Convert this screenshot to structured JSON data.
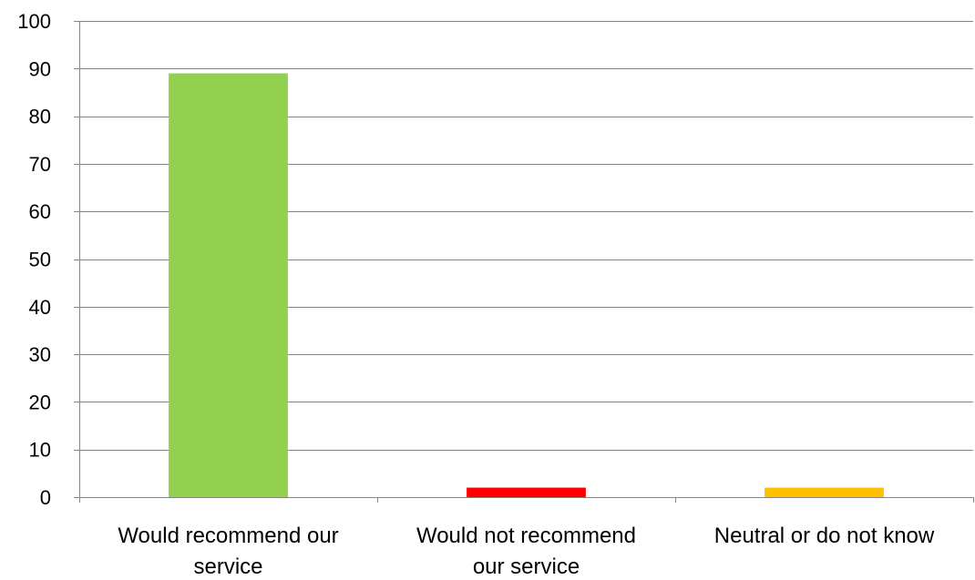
{
  "chart_data": {
    "type": "bar",
    "categories": [
      [
        "Would recommend our",
        "service"
      ],
      [
        "Would not recommend",
        "our service"
      ],
      [
        "Neutral or do not know"
      ]
    ],
    "values": [
      89,
      2,
      2
    ],
    "colors": [
      "#92D050",
      "#FF0000",
      "#FFC000"
    ],
    "ylim": [
      0,
      100
    ],
    "yticks": [
      "0",
      "10",
      "20",
      "30",
      "40",
      "50",
      "60",
      "70",
      "80",
      "90",
      "100"
    ],
    "grid": true,
    "legend": "none",
    "title": "",
    "xlabel": "",
    "ylabel": ""
  }
}
